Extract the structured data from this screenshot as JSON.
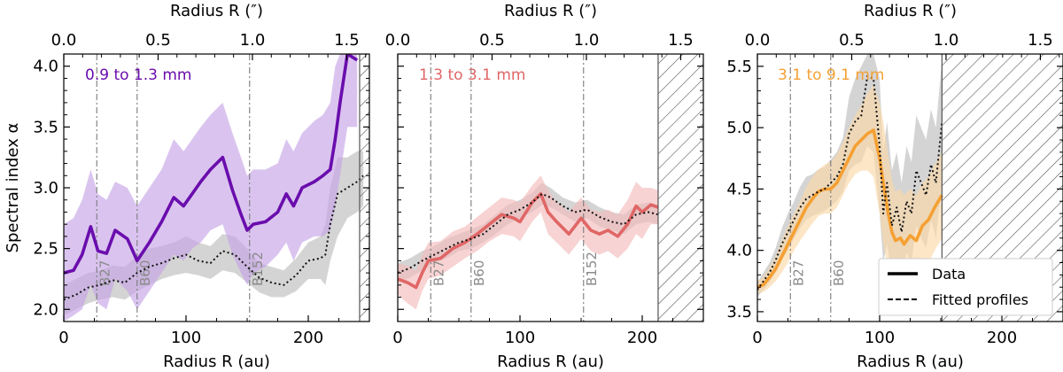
{
  "chart_data": [
    {
      "type": "line",
      "panel_label": "0.9 to 1.3 mm",
      "label_color": "#6a0dad",
      "data_color": "#6a0dad",
      "band_color": "#c6a4e6",
      "xlabel": "Radius R (au)",
      "top_xlabel": "Radius R (″)",
      "ylabel": "Spectral index α",
      "xlim": [
        0,
        250
      ],
      "ylim": [
        1.9,
        4.1
      ],
      "top_xlim": [
        0,
        1.62
      ],
      "x_ticks": [
        0,
        100,
        200
      ],
      "x_tick_labels": [
        "0",
        "100",
        "200"
      ],
      "top_ticks": [
        0,
        0.5,
        1.0,
        1.5
      ],
      "top_tick_labels": [
        "0.0",
        "0.5",
        "1.0",
        "1.5"
      ],
      "y_ticks": [
        2.0,
        2.5,
        3.0,
        3.5,
        4.0
      ],
      "y_tick_labels": [
        "2.0",
        "2.5",
        "3.0",
        "3.5",
        "4.0"
      ],
      "gap_markers": [
        {
          "x": 27,
          "label": "B27"
        },
        {
          "x": 60,
          "label": "B60"
        },
        {
          "x": 152,
          "label": "B152"
        }
      ],
      "hatch_from": 242,
      "data": {
        "x": [
          0,
          8,
          15,
          22,
          28,
          35,
          42,
          52,
          60,
          70,
          80,
          90,
          98,
          105,
          112,
          120,
          130,
          138,
          145,
          150,
          155,
          165,
          175,
          182,
          188,
          195,
          205,
          212,
          218,
          222,
          226,
          232,
          240
        ],
        "y": [
          2.3,
          2.32,
          2.45,
          2.68,
          2.48,
          2.46,
          2.65,
          2.58,
          2.4,
          2.55,
          2.72,
          2.92,
          2.85,
          2.95,
          3.05,
          3.15,
          3.25,
          2.98,
          2.78,
          2.65,
          2.7,
          2.72,
          2.8,
          2.95,
          2.85,
          3.0,
          3.05,
          3.1,
          3.15,
          3.4,
          3.7,
          4.1,
          4.05
        ],
        "y_low": [
          1.9,
          1.95,
          2.0,
          2.2,
          2.05,
          2.0,
          2.25,
          2.15,
          2.0,
          2.15,
          2.3,
          2.45,
          2.4,
          2.5,
          2.55,
          2.65,
          2.7,
          2.45,
          2.3,
          2.2,
          2.3,
          2.35,
          2.45,
          2.55,
          2.4,
          2.55,
          2.6,
          2.6,
          2.65,
          2.85,
          3.1,
          3.5,
          3.5
        ],
        "y_high": [
          2.7,
          2.75,
          2.9,
          3.15,
          2.95,
          2.9,
          3.05,
          3.0,
          2.85,
          3.0,
          3.15,
          3.4,
          3.3,
          3.4,
          3.5,
          3.6,
          3.7,
          3.45,
          3.25,
          3.1,
          3.15,
          3.15,
          3.2,
          3.4,
          3.3,
          3.45,
          3.55,
          3.6,
          3.7,
          4.0,
          4.1,
          4.1,
          4.1
        ]
      },
      "fit": {
        "x": [
          0,
          10,
          20,
          30,
          40,
          50,
          60,
          70,
          80,
          90,
          100,
          110,
          120,
          130,
          140,
          150,
          160,
          170,
          180,
          190,
          200,
          210,
          214,
          218,
          224,
          232,
          240,
          245
        ],
        "y": [
          2.08,
          2.12,
          2.18,
          2.2,
          2.24,
          2.22,
          2.3,
          2.35,
          2.38,
          2.42,
          2.45,
          2.4,
          2.38,
          2.48,
          2.45,
          2.35,
          2.26,
          2.22,
          2.2,
          2.28,
          2.4,
          2.42,
          2.45,
          2.7,
          2.95,
          3.0,
          3.05,
          3.1
        ],
        "y_low": [
          1.95,
          2.0,
          2.05,
          2.08,
          2.1,
          2.08,
          2.15,
          2.2,
          2.25,
          2.28,
          2.3,
          2.28,
          2.25,
          2.32,
          2.3,
          2.22,
          2.14,
          2.1,
          2.1,
          2.15,
          2.25,
          2.25,
          2.2,
          2.4,
          2.6,
          2.75,
          2.8,
          2.85
        ],
        "y_high": [
          2.2,
          2.25,
          2.3,
          2.32,
          2.36,
          2.35,
          2.44,
          2.5,
          2.52,
          2.55,
          2.6,
          2.55,
          2.52,
          2.62,
          2.6,
          2.5,
          2.38,
          2.35,
          2.32,
          2.42,
          2.55,
          2.6,
          2.7,
          3.0,
          3.25,
          3.25,
          3.3,
          3.3
        ]
      }
    },
    {
      "type": "line",
      "panel_label": "1.3 to 3.1 mm",
      "label_color": "#e06666",
      "data_color": "#e06666",
      "band_color": "#f4bcbc",
      "xlabel": "Radius R (au)",
      "top_xlabel": "Radius R (″)",
      "xlim": [
        0,
        250
      ],
      "ylim": [
        1.9,
        4.1
      ],
      "top_xlim": [
        0,
        1.62
      ],
      "x_ticks": [
        0,
        100,
        200
      ],
      "x_tick_labels": [
        "0",
        "100",
        "200"
      ],
      "top_ticks": [
        0,
        0.5,
        1.0,
        1.5
      ],
      "top_tick_labels": [
        "0.0",
        "0.5",
        "1.0",
        "1.5"
      ],
      "y_ticks": [
        2.0,
        2.5,
        3.0,
        3.5,
        4.0
      ],
      "gap_markers": [
        {
          "x": 27,
          "label": "B27"
        },
        {
          "x": 60,
          "label": "B60"
        },
        {
          "x": 152,
          "label": "B152"
        }
      ],
      "hatch_from": 213,
      "data": {
        "x": [
          0,
          8,
          15,
          20,
          25,
          35,
          45,
          55,
          65,
          75,
          85,
          95,
          100,
          110,
          117,
          123,
          130,
          140,
          150,
          158,
          165,
          172,
          180,
          188,
          195,
          200,
          207,
          213
        ],
        "y": [
          2.25,
          2.22,
          2.18,
          2.3,
          2.4,
          2.42,
          2.5,
          2.55,
          2.62,
          2.7,
          2.78,
          2.75,
          2.72,
          2.88,
          2.95,
          2.8,
          2.72,
          2.62,
          2.75,
          2.65,
          2.62,
          2.65,
          2.6,
          2.7,
          2.85,
          2.8,
          2.86,
          2.84
        ],
        "y_low": [
          2.12,
          2.05,
          2.0,
          2.15,
          2.25,
          2.28,
          2.35,
          2.42,
          2.48,
          2.56,
          2.62,
          2.6,
          2.56,
          2.72,
          2.8,
          2.62,
          2.55,
          2.45,
          2.58,
          2.48,
          2.45,
          2.48,
          2.42,
          2.5,
          2.62,
          2.58,
          2.7,
          2.7
        ],
        "y_high": [
          2.38,
          2.36,
          2.32,
          2.45,
          2.55,
          2.56,
          2.64,
          2.68,
          2.76,
          2.84,
          2.92,
          2.9,
          2.88,
          3.02,
          3.1,
          2.98,
          2.88,
          2.8,
          2.92,
          2.82,
          2.8,
          2.82,
          2.78,
          2.9,
          3.05,
          3.0,
          3.0,
          2.98
        ]
      },
      "fit": {
        "x": [
          0,
          10,
          20,
          30,
          40,
          50,
          60,
          70,
          80,
          90,
          100,
          110,
          118,
          125,
          135,
          145,
          155,
          165,
          175,
          185,
          195,
          205,
          213
        ],
        "y": [
          2.3,
          2.34,
          2.4,
          2.45,
          2.5,
          2.55,
          2.58,
          2.62,
          2.7,
          2.78,
          2.82,
          2.88,
          2.95,
          2.92,
          2.85,
          2.8,
          2.82,
          2.76,
          2.72,
          2.7,
          2.78,
          2.8,
          2.78
        ],
        "y_low": [
          2.22,
          2.26,
          2.32,
          2.38,
          2.42,
          2.48,
          2.5,
          2.55,
          2.62,
          2.7,
          2.75,
          2.8,
          2.86,
          2.84,
          2.78,
          2.72,
          2.75,
          2.68,
          2.65,
          2.62,
          2.7,
          2.72,
          2.7
        ],
        "y_high": [
          2.38,
          2.42,
          2.48,
          2.52,
          2.58,
          2.62,
          2.66,
          2.7,
          2.78,
          2.86,
          2.9,
          2.96,
          3.04,
          3.0,
          2.92,
          2.88,
          2.9,
          2.84,
          2.8,
          2.78,
          2.86,
          2.88,
          2.86
        ]
      }
    },
    {
      "type": "line",
      "panel_label": "3.1 to 9.1 mm",
      "label_color": "#f5a033",
      "data_color": "#f5a033",
      "band_color": "#fbd9a8",
      "xlabel": "Radius R (au)",
      "top_xlabel": "Radius R (″)",
      "xlim": [
        0,
        250
      ],
      "ylim": [
        3.42,
        5.6
      ],
      "top_xlim": [
        0,
        1.62
      ],
      "x_ticks": [
        0,
        100,
        200
      ],
      "x_tick_labels": [
        "0",
        "100",
        "200"
      ],
      "top_ticks": [
        0,
        0.5,
        1.0,
        1.5
      ],
      "top_tick_labels": [
        "0.0",
        "0.5",
        "1.0",
        "1.5"
      ],
      "y_ticks": [
        3.5,
        4.0,
        4.5,
        5.0,
        5.5
      ],
      "y_tick_labels": [
        "3.5",
        "4.0",
        "4.5",
        "5.0",
        "5.5"
      ],
      "gap_markers": [
        {
          "x": 27,
          "label": "B27"
        },
        {
          "x": 60,
          "label": "B60"
        }
      ],
      "hatch_from": 151,
      "legend": {
        "data_label": "Data",
        "fit_label": "Fitted profiles"
      },
      "data": {
        "x": [
          0,
          5,
          10,
          15,
          20,
          25,
          30,
          35,
          40,
          45,
          50,
          55,
          60,
          65,
          70,
          75,
          80,
          85,
          90,
          95,
          100,
          103,
          107,
          110,
          113,
          117,
          120,
          125,
          130,
          135,
          140,
          145,
          151
        ],
        "y": [
          3.7,
          3.72,
          3.78,
          3.85,
          3.95,
          4.05,
          4.15,
          4.25,
          4.35,
          4.42,
          4.48,
          4.5,
          4.5,
          4.55,
          4.65,
          4.75,
          4.85,
          4.9,
          4.95,
          4.98,
          4.75,
          4.55,
          4.3,
          4.15,
          4.08,
          4.1,
          4.05,
          4.12,
          4.08,
          4.2,
          4.25,
          4.35,
          4.45
        ],
        "y_low": [
          3.65,
          3.66,
          3.7,
          3.75,
          3.82,
          3.9,
          4.0,
          4.08,
          4.15,
          4.22,
          4.28,
          4.3,
          4.3,
          4.35,
          4.45,
          4.55,
          4.62,
          4.65,
          4.65,
          4.6,
          4.3,
          4.05,
          3.85,
          3.75,
          3.7,
          3.7,
          3.68,
          3.75,
          3.72,
          3.85,
          3.9,
          4.0,
          4.1
        ],
        "y_high": [
          3.75,
          3.78,
          3.86,
          3.95,
          4.08,
          4.2,
          4.3,
          4.4,
          4.52,
          4.6,
          4.66,
          4.7,
          4.72,
          4.78,
          4.88,
          5.0,
          5.1,
          5.18,
          5.28,
          5.35,
          5.2,
          5.05,
          4.78,
          4.58,
          4.48,
          4.5,
          4.45,
          4.5,
          4.45,
          4.55,
          4.6,
          4.7,
          4.8
        ]
      },
      "fit": {
        "x": [
          0,
          5,
          10,
          15,
          20,
          25,
          30,
          35,
          40,
          45,
          50,
          55,
          60,
          65,
          70,
          75,
          80,
          85,
          90,
          95,
          100,
          103,
          106,
          110,
          114,
          118,
          122,
          126,
          130,
          134,
          138,
          142,
          146,
          151
        ],
        "y": [
          3.68,
          3.75,
          3.82,
          3.92,
          4.05,
          4.15,
          4.25,
          4.35,
          4.42,
          4.45,
          4.48,
          4.5,
          4.55,
          4.6,
          4.7,
          4.95,
          5.05,
          5.1,
          5.42,
          5.4,
          4.85,
          4.3,
          4.55,
          4.2,
          4.35,
          4.15,
          4.4,
          4.3,
          4.65,
          4.55,
          4.45,
          4.7,
          4.55,
          5.05
        ],
        "y_low": [
          3.62,
          3.68,
          3.74,
          3.82,
          3.92,
          4.0,
          4.1,
          4.18,
          4.25,
          4.28,
          4.3,
          4.32,
          4.36,
          4.4,
          4.48,
          4.65,
          4.7,
          4.72,
          4.85,
          4.8,
          4.3,
          3.9,
          4.05,
          3.8,
          3.95,
          3.78,
          3.98,
          3.9,
          4.2,
          4.1,
          4.02,
          4.25,
          4.1,
          4.55
        ],
        "y_high": [
          3.74,
          3.82,
          3.9,
          4.02,
          4.18,
          4.3,
          4.4,
          4.52,
          4.6,
          4.62,
          4.66,
          4.68,
          4.74,
          4.8,
          4.92,
          5.25,
          5.4,
          5.5,
          5.6,
          5.6,
          5.4,
          4.8,
          5.05,
          4.65,
          4.8,
          4.55,
          4.85,
          4.72,
          5.1,
          5.0,
          4.9,
          5.15,
          5.0,
          5.55
        ]
      }
    }
  ]
}
